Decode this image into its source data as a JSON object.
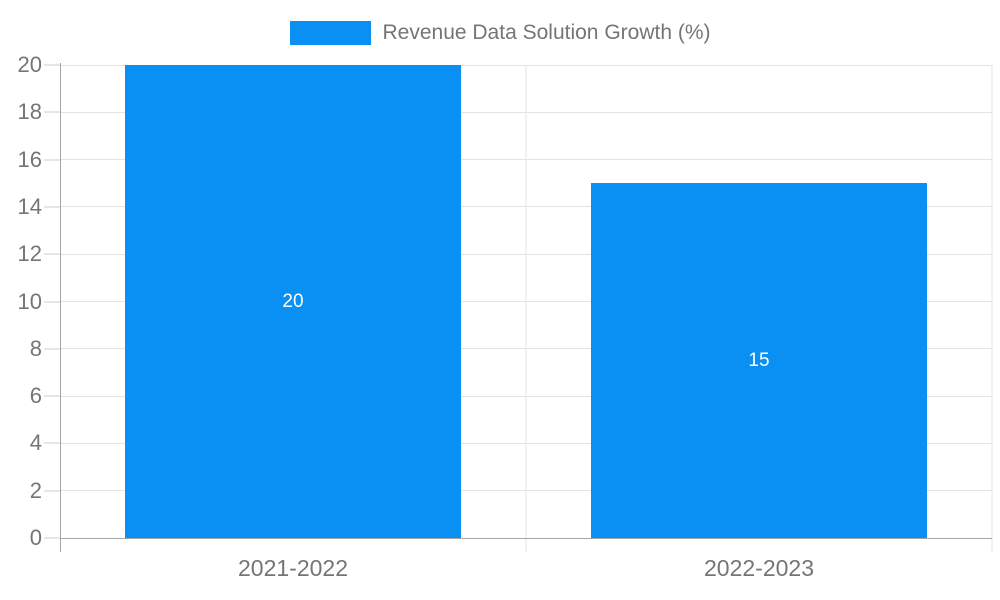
{
  "legend": {
    "label": "Revenue Data Solution Growth (%)"
  },
  "chart_data": {
    "type": "bar",
    "title": "",
    "categories": [
      "2021-2022",
      "2022-2023"
    ],
    "series": [
      {
        "name": "Revenue Data Solution Growth (%)",
        "values": [
          20,
          15
        ]
      }
    ],
    "value_labels": [
      "20",
      "15"
    ],
    "yticks": [
      0,
      2,
      4,
      6,
      8,
      10,
      12,
      14,
      16,
      18,
      20
    ],
    "ylim": [
      0,
      20
    ],
    "xlabel": "",
    "ylabel": "",
    "grid": true,
    "legend_position": "top-center",
    "colors": {
      "bar": "#0a8ff2",
      "bar_label": "#ffffff",
      "axis_text": "#757575",
      "gridline": "#e3e3e3",
      "tick": "#cccccc",
      "axis_line": "#a6a6a6"
    }
  }
}
